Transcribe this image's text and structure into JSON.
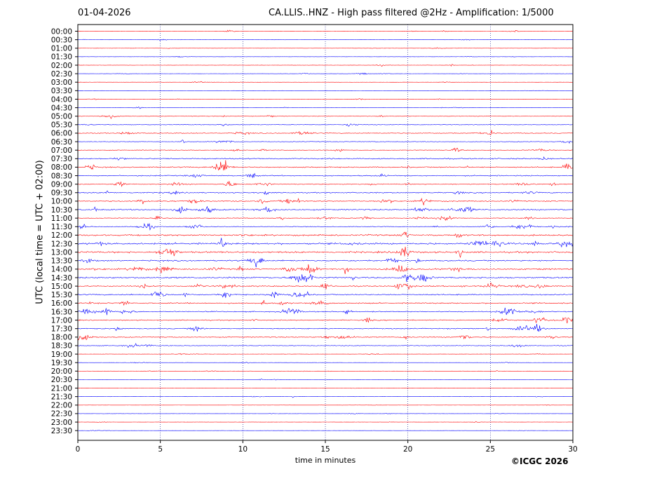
{
  "header": {
    "date": "01-04-2026",
    "title": "CA.LLIS..HNZ - High pass filtered @2Hz - Amplification: 1/5000"
  },
  "copyright": "©ICGC 2026",
  "chart_data": {
    "type": "line",
    "title": "CA.LLIS..HNZ - High pass filtered @2Hz - Amplification: 1/5000",
    "xlabel": "time in minutes",
    "ylabel": "UTC (local time = UTC + 02:00)",
    "xlim": [
      0,
      30
    ],
    "x_ticks": [
      0,
      5,
      10,
      15,
      20,
      25,
      30
    ],
    "x_tick_labels": [
      "0",
      "5",
      "10",
      "15",
      "20",
      "25",
      "30"
    ],
    "grid": "vertical dotted lines at every 5 minutes",
    "trace_colors": [
      "#ff0000",
      "#0000ff"
    ],
    "row_labels": [
      "00:00",
      "00:30",
      "01:00",
      "01:30",
      "02:00",
      "02:30",
      "03:00",
      "03:30",
      "04:00",
      "04:30",
      "05:00",
      "05:30",
      "06:00",
      "06:30",
      "07:00",
      "07:30",
      "08:00",
      "08:30",
      "09:00",
      "09:30",
      "10:00",
      "10:30",
      "11:00",
      "11:30",
      "12:00",
      "12:30",
      "13:00",
      "13:30",
      "14:00",
      "14:30",
      "15:00",
      "15:30",
      "16:00",
      "16:30",
      "17:00",
      "17:30",
      "18:00",
      "18:30",
      "19:00",
      "19:30",
      "20:00",
      "20:30",
      "21:00",
      "21:30",
      "22:00",
      "22:30",
      "23:00",
      "23:30"
    ],
    "row_amplitude": [
      0.4,
      0.4,
      0.3,
      0.3,
      0.4,
      0.4,
      0.3,
      0.3,
      0.4,
      0.4,
      0.9,
      0.9,
      1.3,
      1.0,
      1.1,
      2.0,
      1.9,
      1.8,
      1.6,
      1.8,
      1.8,
      2.2,
      1.2,
      1.2,
      2.6,
      3.0,
      2.9,
      2.3,
      2.4,
      2.6,
      2.0,
      2.0,
      2.0,
      1.8,
      1.7,
      1.6,
      1.7,
      1.2,
      0.4,
      0.3,
      0.3,
      0.3,
      0.3,
      0.3,
      0.2,
      0.3,
      0.3,
      0.2
    ],
    "noise_level": "increased activity 07:00–18:30 UTC, quiet at night"
  }
}
